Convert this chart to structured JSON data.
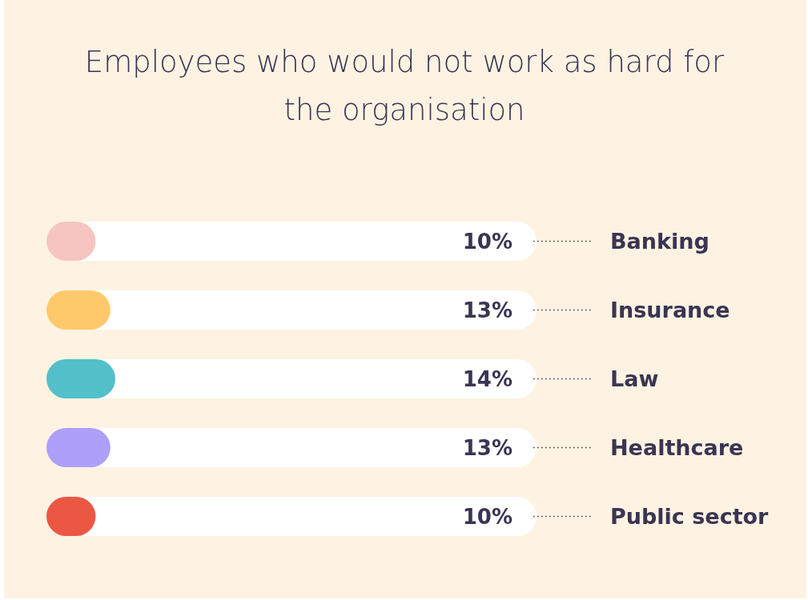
{
  "chart_data": {
    "type": "bar",
    "orientation": "horizontal",
    "title": "Employees who would not work as hard for the organisation",
    "categories": [
      "Banking",
      "Insurance",
      "Law",
      "Healthcare",
      "Public sector"
    ],
    "values": [
      10,
      13,
      14,
      13,
      10
    ],
    "colors": [
      "#f6c5c2",
      "#ffc96b",
      "#52bfca",
      "#ad9ffa",
      "#ec5744"
    ],
    "value_labels": [
      "10%",
      "13%",
      "14%",
      "13%",
      "10%"
    ]
  }
}
